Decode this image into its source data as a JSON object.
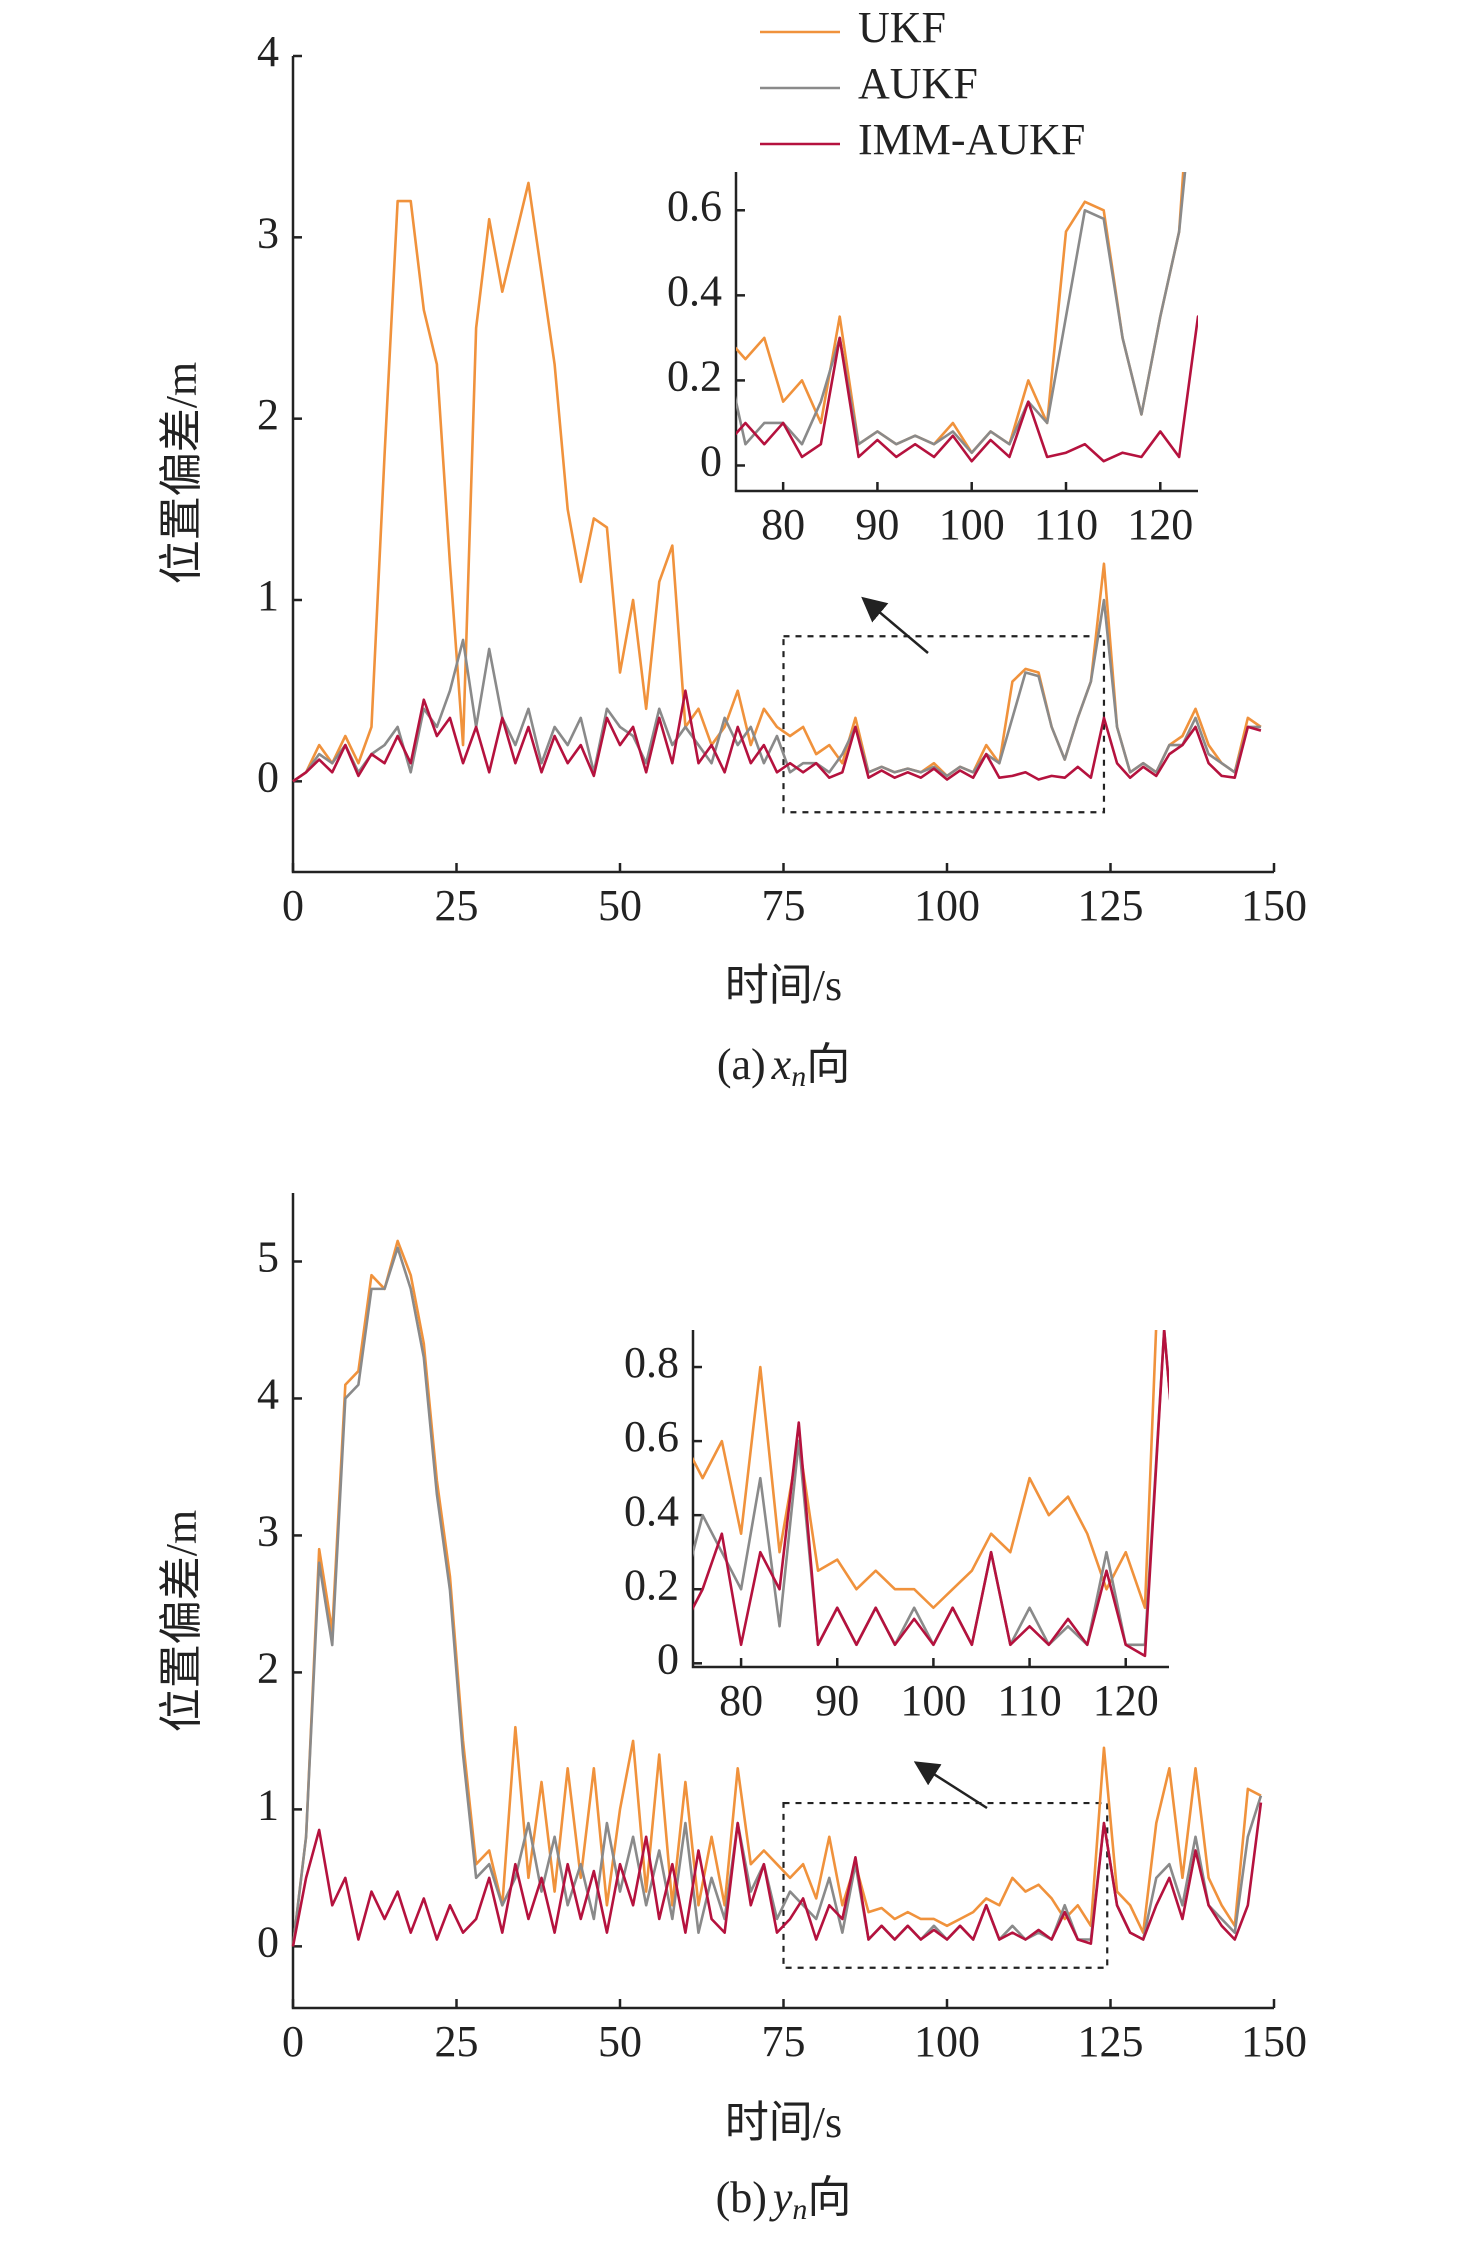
{
  "chart_data": [
    {
      "type": "line",
      "legend": "upper center",
      "xlabel": "时间/s",
      "ylabel": "位置偏差/m",
      "caption": {
        "label": "(a)",
        "var": "x",
        "sub": "n",
        "suffix": "向"
      },
      "x": [
        0,
        2,
        4,
        6,
        8,
        10,
        12,
        14,
        16,
        18,
        20,
        22,
        24,
        26,
        28,
        30,
        32,
        34,
        36,
        38,
        40,
        42,
        44,
        46,
        48,
        50,
        52,
        54,
        56,
        58,
        60,
        62,
        64,
        66,
        68,
        70,
        72,
        74,
        76,
        78,
        80,
        82,
        84,
        86,
        88,
        90,
        92,
        94,
        96,
        98,
        100,
        102,
        104,
        106,
        108,
        110,
        112,
        114,
        116,
        118,
        120,
        122,
        124,
        126,
        128,
        130,
        132,
        134,
        136,
        138,
        140,
        142,
        144,
        146,
        148
      ],
      "xlim": [
        0,
        150
      ],
      "xticks": [
        0,
        25,
        50,
        75,
        100,
        125,
        150
      ],
      "ylim": [
        -0.5,
        4
      ],
      "yticks": [
        0,
        1,
        2,
        3,
        4
      ],
      "series": [
        {
          "name": "UKF",
          "color": "#f0923c",
          "values": [
            0,
            0.05,
            0.2,
            0.1,
            0.25,
            0.1,
            0.3,
            1.8,
            3.2,
            3.2,
            2.6,
            2.3,
            1.2,
            0.2,
            2.5,
            3.1,
            2.7,
            3.0,
            3.3,
            2.8,
            2.3,
            1.5,
            1.1,
            1.45,
            1.4,
            0.6,
            1.0,
            0.4,
            1.1,
            1.3,
            0.3,
            0.4,
            0.2,
            0.3,
            0.5,
            0.2,
            0.4,
            0.3,
            0.25,
            0.3,
            0.15,
            0.2,
            0.1,
            0.35,
            0.05,
            0.08,
            0.05,
            0.07,
            0.05,
            0.1,
            0.03,
            0.08,
            0.05,
            0.2,
            0.1,
            0.55,
            0.62,
            0.6,
            0.3,
            0.12,
            0.35,
            0.55,
            1.2,
            0.3,
            0.05,
            0.1,
            0.05,
            0.2,
            0.25,
            0.4,
            0.2,
            0.1,
            0.05,
            0.35,
            0.3
          ]
        },
        {
          "name": "AUKF",
          "color": "#8a8a8a",
          "values": [
            0,
            0.05,
            0.15,
            0.1,
            0.2,
            0.05,
            0.15,
            0.2,
            0.3,
            0.05,
            0.4,
            0.3,
            0.5,
            0.78,
            0.3,
            0.73,
            0.35,
            0.2,
            0.4,
            0.1,
            0.3,
            0.2,
            0.35,
            0.05,
            0.4,
            0.3,
            0.25,
            0.1,
            0.4,
            0.2,
            0.3,
            0.2,
            0.1,
            0.35,
            0.2,
            0.3,
            0.1,
            0.25,
            0.05,
            0.1,
            0.1,
            0.05,
            0.15,
            0.3,
            0.05,
            0.08,
            0.05,
            0.07,
            0.05,
            0.08,
            0.03,
            0.08,
            0.05,
            0.15,
            0.1,
            0.35,
            0.6,
            0.58,
            0.3,
            0.12,
            0.35,
            0.55,
            1.0,
            0.3,
            0.05,
            0.1,
            0.05,
            0.2,
            0.2,
            0.35,
            0.15,
            0.1,
            0.05,
            0.3,
            0.3
          ]
        },
        {
          "name": "IMM-AUKF",
          "color": "#b5123e",
          "values": [
            0,
            0.05,
            0.12,
            0.05,
            0.2,
            0.03,
            0.15,
            0.1,
            0.25,
            0.1,
            0.45,
            0.25,
            0.35,
            0.1,
            0.3,
            0.05,
            0.35,
            0.1,
            0.3,
            0.05,
            0.25,
            0.1,
            0.2,
            0.03,
            0.35,
            0.2,
            0.3,
            0.05,
            0.35,
            0.1,
            0.5,
            0.1,
            0.2,
            0.05,
            0.3,
            0.1,
            0.2,
            0.05,
            0.1,
            0.05,
            0.1,
            0.02,
            0.05,
            0.3,
            0.02,
            0.06,
            0.02,
            0.05,
            0.02,
            0.07,
            0.01,
            0.06,
            0.02,
            0.15,
            0.02,
            0.03,
            0.05,
            0.01,
            0.03,
            0.02,
            0.08,
            0.02,
            0.35,
            0.1,
            0.02,
            0.08,
            0.03,
            0.15,
            0.2,
            0.3,
            0.1,
            0.03,
            0.02,
            0.3,
            0.28
          ]
        }
      ],
      "inset": {
        "xlim": [
          75,
          124
        ],
        "ylim": [
          -0.06,
          0.69
        ],
        "xticks": [
          80,
          90,
          100,
          110,
          120
        ],
        "yticks": [
          0,
          0.2,
          0.4,
          0.6
        ]
      }
    },
    {
      "type": "line",
      "xlabel": "时间/s",
      "ylabel": "位置偏差/m",
      "caption": {
        "label": "(b)",
        "var": "y",
        "sub": "n",
        "suffix": "向"
      },
      "x": [
        0,
        2,
        4,
        6,
        8,
        10,
        12,
        14,
        16,
        18,
        20,
        22,
        24,
        26,
        28,
        30,
        32,
        34,
        36,
        38,
        40,
        42,
        44,
        46,
        48,
        50,
        52,
        54,
        56,
        58,
        60,
        62,
        64,
        66,
        68,
        70,
        72,
        74,
        76,
        78,
        80,
        82,
        84,
        86,
        88,
        90,
        92,
        94,
        96,
        98,
        100,
        102,
        104,
        106,
        108,
        110,
        112,
        114,
        116,
        118,
        120,
        122,
        124,
        126,
        128,
        130,
        132,
        134,
        136,
        138,
        140,
        142,
        144,
        146,
        148
      ],
      "xlim": [
        0,
        150
      ],
      "xticks": [
        0,
        25,
        50,
        75,
        100,
        125,
        150
      ],
      "ylim": [
        -0.45,
        5.5
      ],
      "yticks": [
        0,
        1,
        2,
        3,
        4,
        5
      ],
      "series": [
        {
          "name": "UKF",
          "color": "#f0923c",
          "values": [
            0,
            0.8,
            2.9,
            2.3,
            4.1,
            4.2,
            4.9,
            4.8,
            5.15,
            4.9,
            4.4,
            3.4,
            2.7,
            1.5,
            0.6,
            0.7,
            0.3,
            1.6,
            0.5,
            1.2,
            0.4,
            1.3,
            0.5,
            1.3,
            0.3,
            1.0,
            1.5,
            0.4,
            1.4,
            0.3,
            1.2,
            0.3,
            0.8,
            0.3,
            1.3,
            0.6,
            0.7,
            0.6,
            0.5,
            0.6,
            0.35,
            0.8,
            0.3,
            0.6,
            0.25,
            0.28,
            0.2,
            0.25,
            0.2,
            0.2,
            0.15,
            0.2,
            0.25,
            0.35,
            0.3,
            0.5,
            0.4,
            0.45,
            0.35,
            0.2,
            0.3,
            0.15,
            1.45,
            0.4,
            0.3,
            0.1,
            0.9,
            1.3,
            0.5,
            1.3,
            0.5,
            0.3,
            0.15,
            1.15,
            1.1
          ]
        },
        {
          "name": "AUKF",
          "color": "#8a8a8a",
          "values": [
            0,
            0.8,
            2.8,
            2.2,
            4.0,
            4.1,
            4.8,
            4.8,
            5.1,
            4.8,
            4.3,
            3.3,
            2.6,
            1.4,
            0.5,
            0.6,
            0.3,
            0.5,
            0.9,
            0.4,
            0.8,
            0.3,
            0.6,
            0.2,
            0.9,
            0.4,
            0.8,
            0.3,
            0.7,
            0.2,
            0.9,
            0.1,
            0.5,
            0.2,
            0.9,
            0.4,
            0.6,
            0.2,
            0.4,
            0.3,
            0.2,
            0.5,
            0.1,
            0.6,
            0.05,
            0.15,
            0.05,
            0.15,
            0.05,
            0.15,
            0.05,
            0.15,
            0.05,
            0.3,
            0.05,
            0.15,
            0.05,
            0.1,
            0.05,
            0.3,
            0.05,
            0.05,
            0.9,
            0.3,
            0.1,
            0.05,
            0.5,
            0.6,
            0.3,
            0.8,
            0.3,
            0.2,
            0.1,
            0.8,
            1.1
          ]
        },
        {
          "name": "IMM-AUKF",
          "color": "#b5123e",
          "values": [
            0,
            0.5,
            0.85,
            0.3,
            0.5,
            0.05,
            0.4,
            0.2,
            0.4,
            0.1,
            0.35,
            0.05,
            0.3,
            0.1,
            0.2,
            0.5,
            0.1,
            0.6,
            0.2,
            0.5,
            0.1,
            0.6,
            0.2,
            0.55,
            0.1,
            0.6,
            0.3,
            0.8,
            0.2,
            0.6,
            0.1,
            0.7,
            0.2,
            0.1,
            0.9,
            0.3,
            0.6,
            0.1,
            0.2,
            0.35,
            0.05,
            0.3,
            0.2,
            0.65,
            0.05,
            0.15,
            0.05,
            0.15,
            0.05,
            0.12,
            0.05,
            0.15,
            0.05,
            0.3,
            0.05,
            0.1,
            0.05,
            0.12,
            0.05,
            0.25,
            0.05,
            0.02,
            0.9,
            0.3,
            0.1,
            0.05,
            0.3,
            0.5,
            0.2,
            0.7,
            0.3,
            0.15,
            0.05,
            0.3,
            1.05
          ]
        }
      ],
      "inset": {
        "xlim": [
          75,
          124.5
        ],
        "ylim": [
          -0.01,
          0.9
        ],
        "xticks": [
          80,
          90,
          100,
          110,
          120
        ],
        "yticks": [
          0,
          0.2,
          0.4,
          0.6,
          0.8
        ]
      }
    }
  ]
}
